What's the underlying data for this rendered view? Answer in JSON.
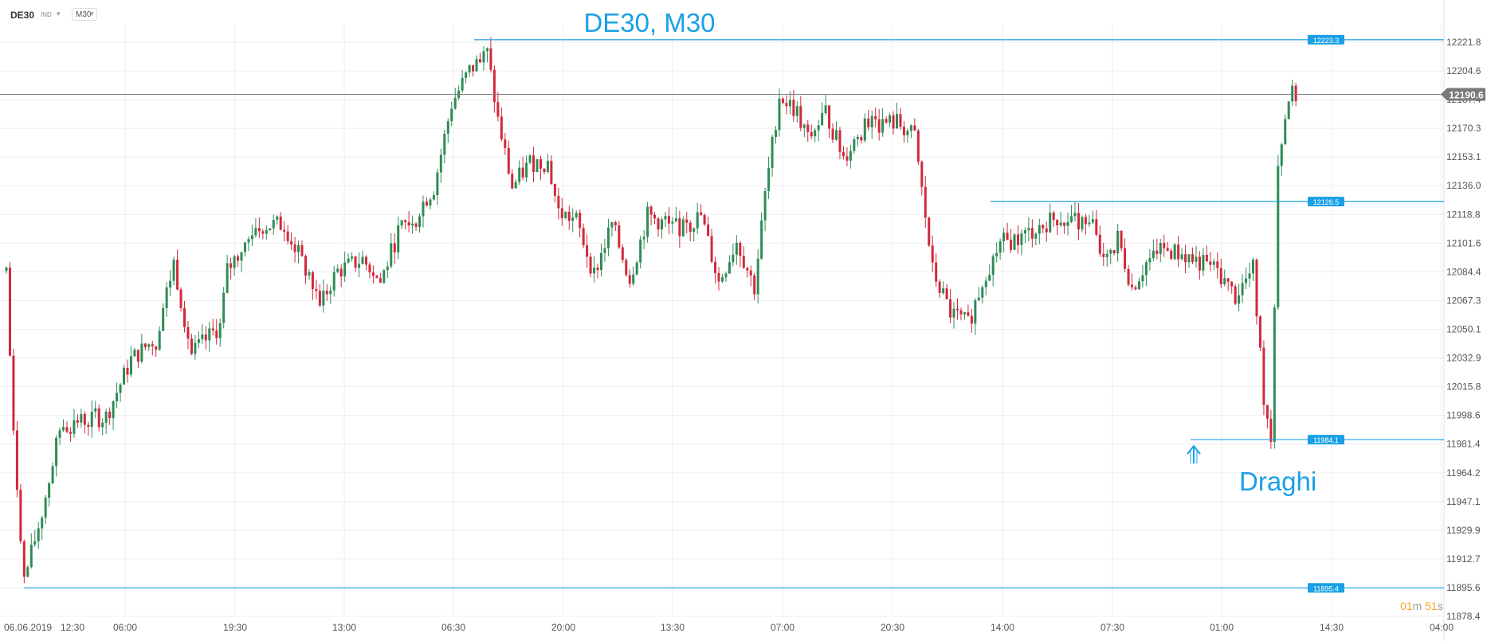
{
  "toolbar": {
    "symbol": "DE30",
    "indicator_label": "IND",
    "timeframe": "M30"
  },
  "timer": {
    "minutes": "01",
    "minutes_unit": "m",
    "seconds": "51",
    "seconds_unit": "s"
  },
  "colors": {
    "bull": "#2e8b57",
    "bear": "#d0293b",
    "annotation": "#1aa0e6",
    "current_price_line": "#808080",
    "grid": "#eeeeee",
    "axis_text": "#555555"
  },
  "chart_data": {
    "type": "candlestick",
    "title": "DE30, M30",
    "instrument": "DE30",
    "timeframe": "M30",
    "x_tick_labels": [
      "06.06.2019",
      "12:30",
      "06:00",
      "19:30",
      "13:00",
      "06:30",
      "20:00",
      "13:30",
      "07:00",
      "20:30",
      "14:00",
      "07:30",
      "01:00",
      "14:30",
      "04:00"
    ],
    "y_tick_labels": [
      "12221.8",
      "12204.6",
      "12187.4",
      "12170.3",
      "12153.1",
      "12136.0",
      "12118.8",
      "12101.6",
      "12084.4",
      "12067.3",
      "12050.1",
      "12032.9",
      "12015.8",
      "11998.6",
      "11981.4",
      "11964.2",
      "11947.1",
      "11929.9",
      "11912.7",
      "11895.6",
      "11878.4"
    ],
    "ylim": [
      11878.4,
      12221.8
    ],
    "current_price": 12190.6,
    "grid": true,
    "levels": [
      {
        "label": "12223.3",
        "value": 12223.3
      },
      {
        "label": "12126.5",
        "value": 12126.5
      },
      {
        "label": "11984.1",
        "value": 11984.1
      },
      {
        "label": "11895.4",
        "value": 11895.4
      }
    ],
    "annotations": [
      {
        "text": "Draghi",
        "marker": "up-arrow",
        "value": 11984.1
      }
    ],
    "path_anchors": [
      [
        0,
        12085
      ],
      [
        2,
        11985
      ],
      [
        5,
        11900
      ],
      [
        10,
        11940
      ],
      [
        15,
        11990
      ],
      [
        20,
        11995
      ],
      [
        28,
        11998
      ],
      [
        35,
        12032
      ],
      [
        42,
        12045
      ],
      [
        47,
        12090
      ],
      [
        52,
        12035
      ],
      [
        60,
        12052
      ],
      [
        62,
        12085
      ],
      [
        70,
        12112
      ],
      [
        78,
        12113
      ],
      [
        82,
        12095
      ],
      [
        88,
        12067
      ],
      [
        93,
        12085
      ],
      [
        100,
        12092
      ],
      [
        105,
        12078
      ],
      [
        110,
        12108
      ],
      [
        115,
        12120
      ],
      [
        120,
        12135
      ],
      [
        125,
        12185
      ],
      [
        130,
        12205
      ],
      [
        135,
        12215
      ],
      [
        138,
        12175
      ],
      [
        142,
        12135
      ],
      [
        147,
        12150
      ],
      [
        152,
        12150
      ],
      [
        155,
        12120
      ],
      [
        160,
        12115
      ],
      [
        165,
        12083
      ],
      [
        170,
        12113
      ],
      [
        175,
        12080
      ],
      [
        180,
        12118
      ],
      [
        185,
        12113
      ],
      [
        190,
        12110
      ],
      [
        195,
        12118
      ],
      [
        200,
        12078
      ],
      [
        205,
        12103
      ],
      [
        210,
        12075
      ],
      [
        213,
        12130
      ],
      [
        217,
        12190
      ],
      [
        222,
        12180
      ],
      [
        225,
        12163
      ],
      [
        230,
        12180
      ],
      [
        235,
        12153
      ],
      [
        240,
        12170
      ],
      [
        245,
        12173
      ],
      [
        250,
        12174
      ],
      [
        255,
        12165
      ],
      [
        260,
        12085
      ],
      [
        265,
        12060
      ],
      [
        270,
        12053
      ],
      [
        275,
        12085
      ],
      [
        280,
        12102
      ],
      [
        285,
        12105
      ],
      [
        290,
        12112
      ],
      [
        295,
        12117
      ],
      [
        300,
        12117
      ],
      [
        305,
        12110
      ],
      [
        308,
        12090
      ],
      [
        312,
        12105
      ],
      [
        316,
        12075
      ],
      [
        320,
        12090
      ],
      [
        325,
        12098
      ],
      [
        330,
        12095
      ],
      [
        335,
        12090
      ],
      [
        340,
        12085
      ],
      [
        345,
        12070
      ],
      [
        350,
        12086
      ],
      [
        353,
        12010
      ],
      [
        355,
        11985
      ],
      [
        357,
        12150
      ],
      [
        360,
        12190
      ],
      [
        362,
        12190
      ]
    ]
  }
}
